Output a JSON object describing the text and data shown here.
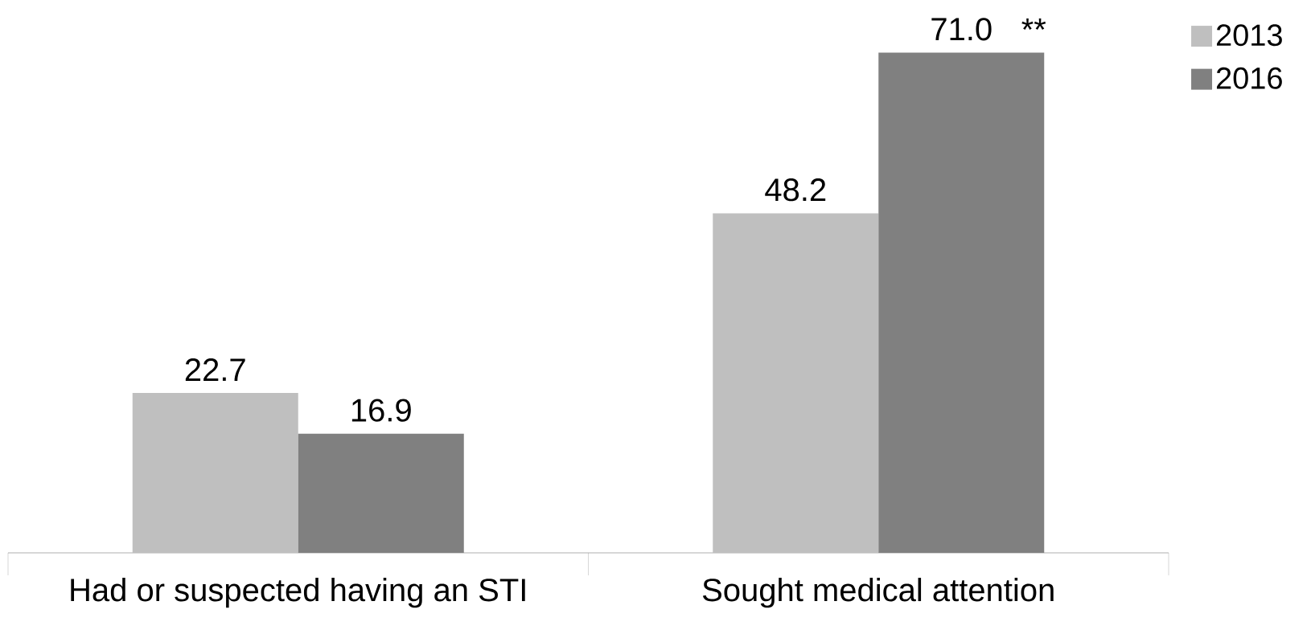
{
  "chart_data": {
    "type": "bar",
    "categories": [
      "Had or suspected having an STI",
      "Sought medical attention"
    ],
    "series": [
      {
        "name": "2013",
        "color": "#bfbfbf",
        "values": [
          22.7,
          48.2
        ],
        "value_labels": [
          "22.7",
          "48.2"
        ]
      },
      {
        "name": "2016",
        "color": "#808080",
        "values": [
          16.9,
          71.0
        ],
        "value_labels": [
          "16.9",
          "71.0"
        ]
      }
    ],
    "legend": "top right",
    "annotations": [
      "**"
    ]
  }
}
